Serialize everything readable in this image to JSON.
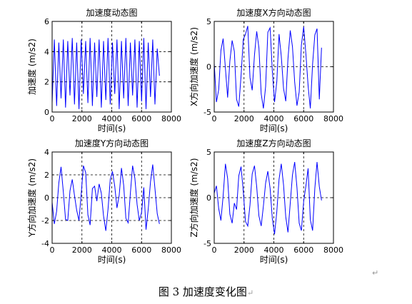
{
  "figure": {
    "caption": "图 3  加速度变化图",
    "caption_mark": "↵",
    "para_mark": "↵"
  },
  "chart_data": [
    {
      "type": "line",
      "title": "加速度动态图",
      "xlabel": "时间(s)",
      "ylabel": "加速度 (m/s2)",
      "xlim": [
        0,
        8000
      ],
      "ylim": [
        0,
        6
      ],
      "xticks": [
        0,
        2000,
        4000,
        6000,
        8000
      ],
      "yticks": [
        0,
        2,
        4,
        6
      ],
      "dashed_x": [
        2000,
        4000,
        6000
      ],
      "dashed_y": [
        2,
        4
      ],
      "color": "#0000ff",
      "series": [
        {
          "x": [
            0,
            150,
            300,
            450,
            600,
            750,
            900,
            1050,
            1200,
            1350,
            1500,
            1650,
            1800,
            1950,
            2100,
            2250,
            2400,
            2550,
            2700,
            2850,
            3000,
            3150,
            3300,
            3450,
            3600,
            3750,
            3900,
            4050,
            4200,
            4350,
            4500,
            4650,
            4800,
            4950,
            5100,
            5250,
            5400,
            5550,
            5700,
            5850,
            6000,
            6150,
            6300,
            6450,
            6600,
            6750,
            6900,
            7050,
            7200
          ],
          "values": [
            0.6,
            4.8,
            0.4,
            4.6,
            0.9,
            4.8,
            0.3,
            4.7,
            1.1,
            4.9,
            0.5,
            4.6,
            0.2,
            4.8,
            1.2,
            4.7,
            0.6,
            4.9,
            0.4,
            4.6,
            1.0,
            4.8,
            0.3,
            4.7,
            0.8,
            4.9,
            0.5,
            4.6,
            1.2,
            4.8,
            0.2,
            4.7,
            0.9,
            4.9,
            0.4,
            4.6,
            1.1,
            4.8,
            0.3,
            4.7,
            0.7,
            4.9,
            0.2,
            4.6,
            1.0,
            4.8,
            0.5,
            4.2,
            2.4
          ]
        }
      ]
    },
    {
      "type": "line",
      "title": "加速度X方向动态图",
      "xlabel": "时间(s)",
      "ylabel": "X方向加速度 (m/s2)",
      "xlim": [
        0,
        8000
      ],
      "ylim": [
        -5,
        5
      ],
      "xticks": [
        0,
        2000,
        4000,
        6000,
        8000
      ],
      "yticks": [
        -5,
        0,
        5
      ],
      "dashed_x": [
        2000,
        4000,
        6000
      ],
      "dashed_y": [
        0
      ],
      "color": "#0000ff",
      "series": [
        {
          "x": [
            0,
            150,
            300,
            450,
            600,
            750,
            900,
            1050,
            1200,
            1350,
            1500,
            1650,
            1800,
            1950,
            2100,
            2250,
            2400,
            2550,
            2700,
            2850,
            3000,
            3150,
            3300,
            3450,
            3600,
            3750,
            3900,
            4050,
            4200,
            4350,
            4500,
            4650,
            4800,
            4950,
            5100,
            5250,
            5400,
            5550,
            5700,
            5850,
            6000,
            6150,
            6300,
            6450,
            6600,
            6750,
            6900,
            7050,
            7200
          ],
          "values": [
            0.4,
            -3.9,
            -2.5,
            1.8,
            3.1,
            -0.2,
            -3.4,
            0.6,
            2.9,
            1.7,
            -3.6,
            -4.4,
            -1.0,
            3.0,
            3.6,
            4.5,
            -1.2,
            -2.6,
            1.3,
            3.9,
            2.1,
            -3.0,
            -4.6,
            -2.2,
            3.8,
            4.3,
            -0.5,
            -3.9,
            -1.6,
            3.6,
            1.2,
            -2.4,
            -3.8,
            0.9,
            4.0,
            2.2,
            -1.7,
            -4.3,
            -2.8,
            2.4,
            4.4,
            1.4,
            -2.1,
            -4.6,
            0.3,
            3.5,
            4.2,
            -3.6,
            2.1
          ]
        }
      ]
    },
    {
      "type": "line",
      "title": "加速度Y方向动态图",
      "xlabel": "时间(s)",
      "ylabel": "Y方向加速度 (m/s2)",
      "xlim": [
        0,
        8000
      ],
      "ylim": [
        -4,
        4
      ],
      "xticks": [
        0,
        2000,
        4000,
        6000,
        8000
      ],
      "yticks": [
        -4,
        -2,
        0,
        2,
        4
      ],
      "dashed_x": [
        2000,
        4000,
        6000
      ],
      "dashed_y": [
        -2,
        0,
        2
      ],
      "color": "#0000ff",
      "series": [
        {
          "x": [
            0,
            150,
            300,
            450,
            600,
            750,
            900,
            1050,
            1200,
            1350,
            1500,
            1650,
            1800,
            1950,
            2100,
            2250,
            2400,
            2550,
            2700,
            2850,
            3000,
            3150,
            3300,
            3450,
            3600,
            3750,
            3900,
            4050,
            4200,
            4350,
            4500,
            4650,
            4800,
            4950,
            5100,
            5250,
            5400,
            5550,
            5700,
            5850,
            6000,
            6150,
            6300,
            6450,
            6600,
            6750,
            6900,
            7050,
            7200
          ],
          "values": [
            -0.4,
            -2.3,
            -1.2,
            1.3,
            2.7,
            0.5,
            -1.9,
            -2.0,
            0.6,
            1.6,
            0.2,
            -1.1,
            -2.0,
            0.3,
            2.8,
            2.2,
            -1.5,
            -2.4,
            0.8,
            1.0,
            -0.3,
            1.2,
            0.4,
            -1.6,
            -2.9,
            -1.0,
            1.6,
            2.3,
            1.0,
            -0.9,
            0.2,
            2.6,
            1.1,
            -1.8,
            -2.2,
            0.4,
            2.8,
            1.7,
            -0.6,
            -2.0,
            -1.3,
            0.9,
            -2.8,
            -1.0,
            1.4,
            2.9,
            0.8,
            -1.4,
            -2.3
          ]
        }
      ]
    },
    {
      "type": "line",
      "title": "加速度Z方向动态图",
      "xlabel": "时间(s)",
      "ylabel": "Z方向加速度 (m/s2)",
      "xlim": [
        0,
        8000
      ],
      "ylim": [
        -5,
        5
      ],
      "xticks": [
        0,
        2000,
        4000,
        6000,
        8000
      ],
      "yticks": [
        -5,
        0,
        5
      ],
      "dashed_x": [
        2000,
        4000,
        6000
      ],
      "dashed_y": [
        0
      ],
      "color": "#0000ff",
      "series": [
        {
          "x": [
            0,
            150,
            300,
            450,
            600,
            750,
            900,
            1050,
            1200,
            1350,
            1500,
            1650,
            1800,
            1950,
            2100,
            2250,
            2400,
            2550,
            2700,
            2850,
            3000,
            3150,
            3300,
            3450,
            3600,
            3750,
            3900,
            4050,
            4200,
            4350,
            4500,
            4650,
            4800,
            4950,
            5100,
            5250,
            5400,
            5550,
            5700,
            5850,
            6000,
            6150,
            6300,
            6450,
            6600,
            6750,
            6900,
            7050,
            7200
          ],
          "values": [
            0.5,
            1.3,
            -1.2,
            -2.5,
            0.2,
            3.7,
            2.1,
            -1.8,
            -2.8,
            -0.6,
            -1.3,
            2.4,
            3.4,
            0.7,
            -2.6,
            -3.1,
            -0.8,
            2.6,
            3.5,
            1.2,
            -2.0,
            -3.1,
            -0.9,
            1.6,
            2.9,
            1.0,
            -2.3,
            -4.0,
            -1.5,
            2.0,
            3.7,
            1.4,
            -2.1,
            -3.8,
            -0.6,
            2.5,
            3.9,
            1.1,
            -2.8,
            -3.6,
            -0.4,
            1.3,
            3.2,
            -2.4,
            -3.6,
            1.0,
            3.9,
            1.2,
            -0.3
          ]
        }
      ]
    }
  ]
}
